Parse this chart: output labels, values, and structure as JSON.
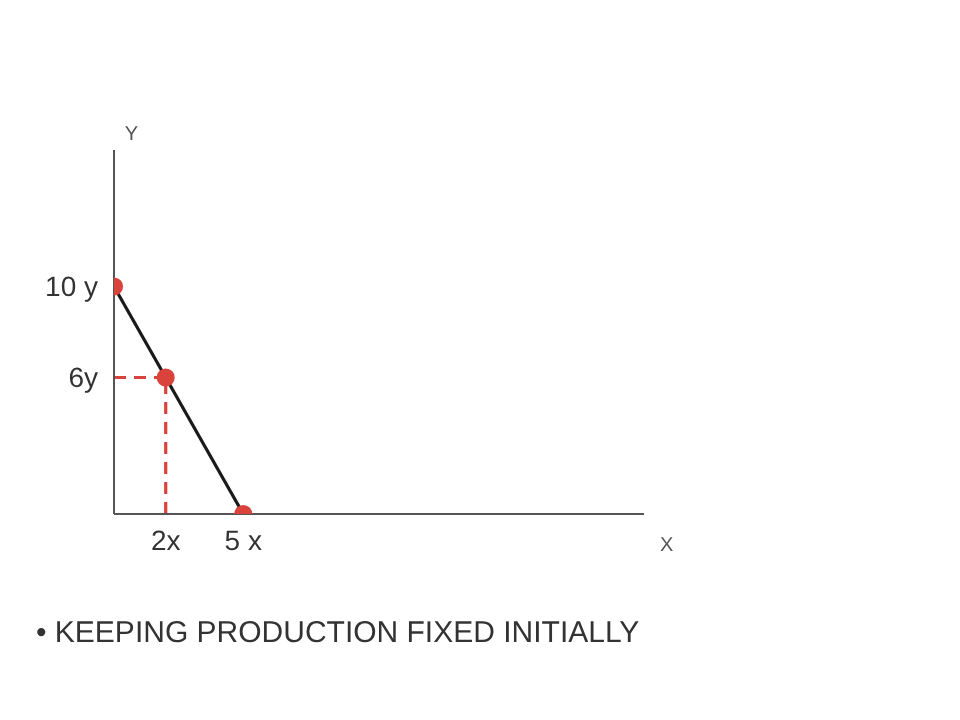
{
  "chart_data": {
    "type": "line",
    "xlabel": "X",
    "ylabel": "Y",
    "xlim": [
      0,
      20.5
    ],
    "ylim": [
      0,
      16
    ],
    "xticks": [
      {
        "value": 2,
        "label": "2x"
      },
      {
        "value": 5,
        "label": "5 x"
      }
    ],
    "yticks": [
      {
        "value": 6,
        "label": "6y"
      },
      {
        "value": 10,
        "label": "10 y"
      }
    ],
    "grid": false,
    "series": [
      {
        "color": "#1a1a1a",
        "x": [
          0,
          5
        ],
        "values": [
          10,
          0
        ],
        "marker": "none",
        "line_style": "solid"
      },
      {
        "color": "#d9433b",
        "x": [
          0,
          2
        ],
        "values": [
          6,
          6
        ],
        "marker": "none",
        "line_style": "dashed"
      },
      {
        "color": "#d9433b",
        "x": [
          2,
          2
        ],
        "values": [
          0,
          6
        ],
        "marker": "none",
        "line_style": "dashed"
      },
      {
        "type": "scatter",
        "color": "#d9433b",
        "x": [
          0,
          2,
          5
        ],
        "values": [
          10,
          6,
          0
        ],
        "marker": "circle"
      }
    ],
    "annotations": [
      "• KEEPING PRODUCTION FIXED INITIALLY"
    ]
  }
}
